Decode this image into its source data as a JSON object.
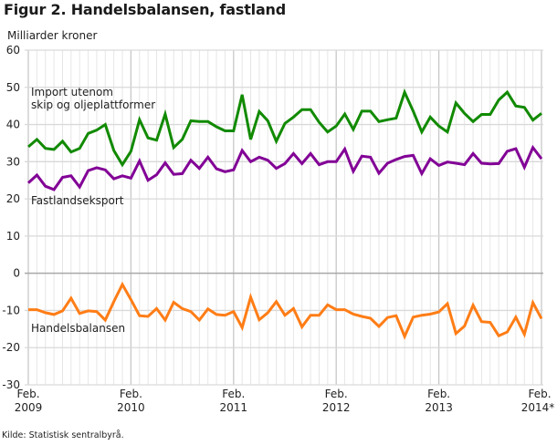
{
  "title": "Figur 2. Handelsbalansen, fastland",
  "source": "Kilde: Statistisk sentralbyrå.",
  "chart_data": {
    "type": "line",
    "title": "Figur 2. Handelsbalansen, fastland",
    "ylabel": "Milliarder kroner",
    "xlabel": "",
    "ylim": [
      -30,
      60
    ],
    "yticks": [
      60,
      50,
      40,
      30,
      20,
      10,
      0,
      -10,
      -20,
      -30
    ],
    "grid": true,
    "xtick_labels": [
      {
        "line1": "Feb.",
        "line2": "2009"
      },
      {
        "line1": "Feb.",
        "line2": "2010"
      },
      {
        "line1": "Feb.",
        "line2": "2011"
      },
      {
        "line1": "Feb.",
        "line2": "2012"
      },
      {
        "line1": "Feb.",
        "line2": "2013"
      },
      {
        "line1": "Feb.",
        "line2": "2014*"
      }
    ],
    "x_start": "Feb. 2009",
    "x_end": "Feb. 2014",
    "n_points": 61,
    "series": [
      {
        "name": "Import utenom skip og oljeplattformer",
        "label_line1": "Import utenom",
        "label_line2": "skip og oljeplattformer",
        "color": "#118a00",
        "values": [
          34.0,
          36.0,
          33.6,
          33.3,
          35.5,
          32.6,
          33.6,
          37.6,
          38.5,
          40.0,
          33.0,
          29.2,
          32.8,
          41.3,
          36.4,
          35.8,
          42.8,
          33.8,
          36.0,
          41.0,
          40.8,
          40.8,
          39.4,
          38.3,
          38.3,
          48.0,
          36.0,
          43.5,
          41.0,
          35.5,
          40.3,
          42.0,
          44.0,
          44.0,
          40.6,
          38.0,
          39.6,
          42.8,
          38.7,
          43.6,
          43.6,
          40.8,
          41.3,
          41.7,
          48.7,
          43.6,
          38.0,
          42.0,
          39.6,
          38.0,
          45.8,
          43.0,
          40.8,
          42.7,
          42.7,
          46.6,
          48.7,
          45.0,
          44.6,
          41.2,
          43.0
        ]
      },
      {
        "name": "Fastlandseksport",
        "label_line1": "Fastlandseksport",
        "color": "#820096",
        "values": [
          24.3,
          26.4,
          23.4,
          22.5,
          25.8,
          26.2,
          23.2,
          27.6,
          28.4,
          27.8,
          25.4,
          26.2,
          25.6,
          30.2,
          25.0,
          26.5,
          29.7,
          26.6,
          26.8,
          30.4,
          28.2,
          31.2,
          28.1,
          27.3,
          27.8,
          33.0,
          30.0,
          31.2,
          30.4,
          28.2,
          29.5,
          32.2,
          29.5,
          32.2,
          29.2,
          30.0,
          30.0,
          33.4,
          27.4,
          31.5,
          31.2,
          26.9,
          29.6,
          30.6,
          31.4,
          31.7,
          26.8,
          30.8,
          29.0,
          29.9,
          29.6,
          29.2,
          32.2,
          29.6,
          29.4,
          29.5,
          32.8,
          33.5,
          28.5,
          33.8,
          30.8
        ]
      },
      {
        "name": "Handelsbalansen",
        "label_line1": "Handelsbalansen",
        "color": "#ff7d16",
        "values": [
          -9.8,
          -9.8,
          -10.6,
          -11.1,
          -10.1,
          -6.7,
          -10.8,
          -10.1,
          -10.3,
          -12.6,
          -7.6,
          -3.0,
          -7.1,
          -11.4,
          -11.6,
          -9.5,
          -12.6,
          -7.8,
          -9.5,
          -10.3,
          -12.6,
          -9.6,
          -11.1,
          -11.3,
          -10.3,
          -14.6,
          -6.4,
          -12.5,
          -10.6,
          -7.6,
          -11.3,
          -9.5,
          -14.4,
          -11.3,
          -11.3,
          -8.5,
          -9.8,
          -9.8,
          -11.0,
          -11.6,
          -12.1,
          -14.3,
          -11.9,
          -11.4,
          -17.0,
          -11.8,
          -11.3,
          -11.0,
          -10.4,
          -8.2,
          -16.2,
          -14.2,
          -8.6,
          -13.0,
          -13.2,
          -16.8,
          -15.8,
          -11.8,
          -16.4,
          -7.9,
          -12.2
        ]
      }
    ]
  }
}
